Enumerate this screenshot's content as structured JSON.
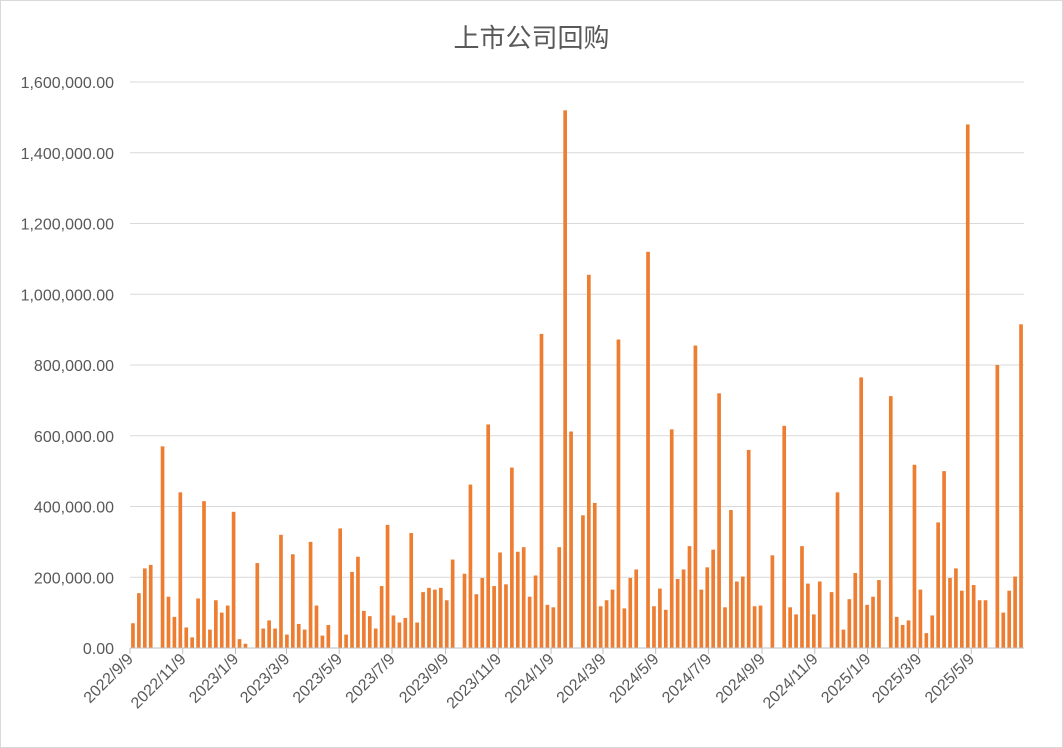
{
  "chart_data": {
    "type": "bar",
    "title": "上市公司回购",
    "xlabel": "",
    "ylabel": "",
    "ylim": [
      0,
      1600000
    ],
    "y_ticks": [
      0,
      200000,
      400000,
      600000,
      800000,
      1000000,
      1200000,
      1400000,
      1600000
    ],
    "y_tick_labels": [
      "0.00",
      "200,000.00",
      "400,000.00",
      "600,000.00",
      "800,000.00",
      "1,000,000.00",
      "1,200,000.00",
      "1,400,000.00",
      "1,600,000.00"
    ],
    "x_tick_labels": [
      "2022/9/9",
      "2022/11/9",
      "2023/1/9",
      "2023/3/9",
      "2023/5/9",
      "2023/7/9",
      "2023/9/9",
      "2023/11/9",
      "2024/1/9",
      "2024/3/9",
      "2024/5/9",
      "2024/7/9",
      "2024/9/9",
      "2024/11/9",
      "2025/1/9",
      "2025/3/9",
      "2025/5/9"
    ],
    "x_tick_positions": [
      0,
      61,
      122,
      181,
      242,
      303,
      365,
      426,
      487,
      547,
      608,
      669,
      731,
      792,
      853,
      912,
      973
    ],
    "total_days": 1034,
    "bar_color": "#ed7d31",
    "grid": true,
    "legend": "none",
    "values": [
      70000,
      155000,
      225000,
      235000,
      0,
      570000,
      145000,
      88000,
      440000,
      58000,
      30000,
      140000,
      415000,
      52000,
      135000,
      100000,
      120000,
      385000,
      25000,
      12000,
      0,
      240000,
      55000,
      78000,
      55000,
      320000,
      38000,
      265000,
      68000,
      52000,
      300000,
      120000,
      35000,
      65000,
      0,
      338000,
      38000,
      215000,
      258000,
      105000,
      90000,
      55000,
      175000,
      348000,
      92000,
      72000,
      85000,
      325000,
      72000,
      158000,
      170000,
      165000,
      170000,
      135000,
      250000,
      0,
      210000,
      462000,
      152000,
      198000,
      632000,
      175000,
      270000,
      180000,
      510000,
      272000,
      285000,
      145000,
      205000,
      888000,
      122000,
      115000,
      285000,
      1520000,
      612000,
      0,
      375000,
      1055000,
      410000,
      118000,
      135000,
      165000,
      872000,
      112000,
      198000,
      222000,
      0,
      1120000,
      118000,
      168000,
      108000,
      618000,
      195000,
      222000,
      288000,
      855000,
      165000,
      228000,
      278000,
      720000,
      115000,
      390000,
      188000,
      202000,
      560000,
      118000,
      120000,
      0,
      262000,
      0,
      628000,
      115000,
      95000,
      288000,
      182000,
      95000,
      188000,
      0,
      158000,
      440000,
      52000,
      138000,
      212000,
      765000,
      122000,
      145000,
      192000,
      0,
      712000,
      88000,
      65000,
      78000,
      518000,
      165000,
      42000,
      92000,
      355000,
      500000,
      198000,
      225000,
      162000,
      1480000,
      178000,
      135000,
      135000,
      0,
      800000,
      100000,
      162000,
      202000,
      915000
    ]
  }
}
